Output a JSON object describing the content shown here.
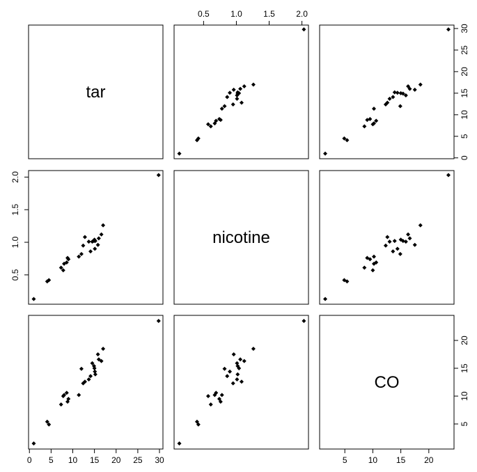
{
  "chart_data": {
    "type": "scatter",
    "variables": [
      "tar",
      "nicotine",
      "CO"
    ],
    "ticks": {
      "tar": [
        0,
        5,
        10,
        15,
        20,
        25,
        30
      ],
      "nicotine": [
        0.5,
        1.0,
        1.5,
        2.0
      ],
      "CO": [
        5,
        10,
        15,
        20
      ]
    },
    "tick_labels": {
      "tar": [
        "0",
        "5",
        "10",
        "15",
        "20",
        "25",
        "30"
      ],
      "nicotine": [
        "0.5",
        "1.0",
        "1.5",
        "2.0"
      ],
      "CO": [
        "5",
        "10",
        "15",
        "20"
      ]
    },
    "axis_ranges": {
      "tar": [
        -0.2,
        30.8
      ],
      "nicotine": [
        0.05,
        2.1
      ],
      "CO": [
        0.5,
        24.5
      ]
    },
    "observations": [
      {
        "tar": 14.1,
        "nicotine": 0.86,
        "CO": 13.6
      },
      {
        "tar": 16.0,
        "nicotine": 1.06,
        "CO": 16.6
      },
      {
        "tar": 29.8,
        "nicotine": 2.03,
        "CO": 23.5
      },
      {
        "tar": 8.0,
        "nicotine": 0.67,
        "CO": 10.2
      },
      {
        "tar": 4.1,
        "nicotine": 0.4,
        "CO": 5.4
      },
      {
        "tar": 15.0,
        "nicotine": 1.04,
        "CO": 15.0
      },
      {
        "tar": 8.8,
        "nicotine": 0.76,
        "CO": 9.0
      },
      {
        "tar": 12.4,
        "nicotine": 0.95,
        "CO": 12.3
      },
      {
        "tar": 16.6,
        "nicotine": 1.12,
        "CO": 16.3
      },
      {
        "tar": 14.9,
        "nicotine": 1.02,
        "CO": 15.4
      },
      {
        "tar": 13.7,
        "nicotine": 1.01,
        "CO": 13.0
      },
      {
        "tar": 15.1,
        "nicotine": 0.9,
        "CO": 14.4
      },
      {
        "tar": 7.8,
        "nicotine": 0.57,
        "CO": 10.0
      },
      {
        "tar": 11.4,
        "nicotine": 0.78,
        "CO": 10.2
      },
      {
        "tar": 9.0,
        "nicotine": 0.74,
        "CO": 9.5
      },
      {
        "tar": 1.0,
        "nicotine": 0.13,
        "CO": 1.5
      },
      {
        "tar": 17.0,
        "nicotine": 1.26,
        "CO": 18.5
      },
      {
        "tar": 12.8,
        "nicotine": 1.08,
        "CO": 12.6
      },
      {
        "tar": 15.8,
        "nicotine": 0.96,
        "CO": 17.5
      },
      {
        "tar": 4.5,
        "nicotine": 0.42,
        "CO": 4.9
      },
      {
        "tar": 14.5,
        "nicotine": 1.01,
        "CO": 15.9
      },
      {
        "tar": 7.3,
        "nicotine": 0.61,
        "CO": 8.5
      },
      {
        "tar": 8.6,
        "nicotine": 0.69,
        "CO": 10.6
      },
      {
        "tar": 15.2,
        "nicotine": 1.02,
        "CO": 13.9
      },
      {
        "tar": 12.0,
        "nicotine": 0.82,
        "CO": 14.9
      }
    ],
    "title": "",
    "grid": false,
    "legend": "none"
  }
}
